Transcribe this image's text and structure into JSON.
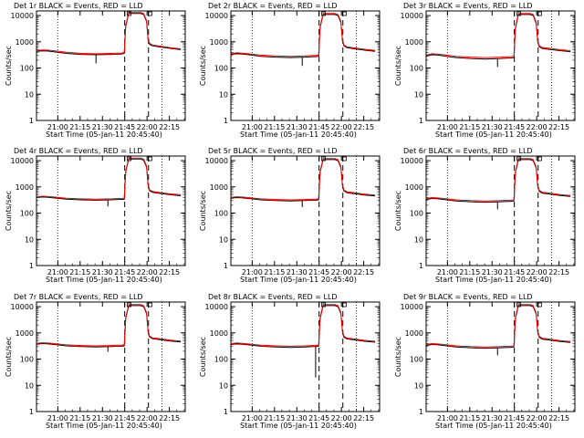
{
  "figure": {
    "ylabel": "Counts/sec",
    "xlabel": "Start Time (05-Jan-11 20:45:40)",
    "x_tick_labels": [
      "21:00",
      "21:15",
      "21:30",
      "21:45",
      "22:00",
      "22:15"
    ],
    "y_tick_labels": [
      "1",
      "10",
      "100",
      "1000",
      "10000"
    ],
    "colors": {
      "events": "#000000",
      "lld": "#ff0000",
      "axes": "#000000",
      "background": "#ffffff"
    }
  },
  "chart_data": [
    {
      "type": "line",
      "title": "Det 1r BLACK = Events, RED = LLD",
      "xlabel": "Start Time (05-Jan-11 20:45:40)",
      "ylabel": "Counts/sec",
      "x_unit": "minutes after 20:45:40",
      "xlim": [
        0,
        100
      ],
      "ylim": [
        1,
        15000
      ],
      "log_y": true,
      "dotted_lines_x": [
        14.3,
        84.3
      ],
      "dashed_lines_x": [
        59.3,
        75.3
      ],
      "x": [
        0,
        4,
        8,
        14,
        20,
        30,
        40,
        50,
        55,
        57,
        59,
        60,
        62,
        65,
        70,
        72,
        74,
        75,
        76,
        78,
        82,
        90,
        97
      ],
      "series": [
        {
          "values": [
            430,
            450,
            440,
            400,
            360,
            330,
            320,
            330,
            340,
            340,
            360,
            4000,
            12000,
            12000,
            12000,
            11000,
            6000,
            1200,
            800,
            700,
            650,
            560,
            500
          ],
          "color": "#000000"
        },
        {
          "values": [
            470,
            490,
            480,
            440,
            400,
            360,
            350,
            360,
            370,
            370,
            390,
            4300,
            13000,
            13000,
            13000,
            12000,
            6500,
            1300,
            880,
            760,
            700,
            600,
            540
          ],
          "color": "#ff0000"
        }
      ],
      "dips": [
        {
          "x": 40,
          "y": 150
        }
      ]
    },
    {
      "type": "line",
      "title": "Det 2r BLACK = Events, RED = LLD",
      "xlabel": "Start Time (05-Jan-11 20:45:40)",
      "ylabel": "Counts/sec",
      "x_unit": "minutes after 20:45:40",
      "xlim": [
        0,
        100
      ],
      "ylim": [
        1,
        15000
      ],
      "log_y": true,
      "dotted_lines_x": [
        14.3,
        84.3
      ],
      "dashed_lines_x": [
        59.3,
        75.3
      ],
      "x": [
        0,
        4,
        8,
        14,
        20,
        30,
        40,
        50,
        55,
        57,
        59,
        60,
        62,
        65,
        70,
        72,
        74,
        75,
        76,
        78,
        82,
        90,
        97
      ],
      "series": [
        {
          "values": [
            330,
            350,
            340,
            310,
            280,
            260,
            250,
            260,
            270,
            270,
            280,
            3500,
            11000,
            11000,
            11000,
            10000,
            5500,
            1100,
            700,
            600,
            550,
            480,
            430
          ],
          "color": "#000000"
        },
        {
          "values": [
            360,
            380,
            370,
            340,
            310,
            290,
            280,
            290,
            300,
            300,
            310,
            3800,
            12000,
            12000,
            12000,
            11000,
            6000,
            1200,
            760,
            650,
            600,
            520,
            470
          ],
          "color": "#ff0000"
        }
      ],
      "dips": [
        {
          "x": 48,
          "y": 120
        }
      ]
    },
    {
      "type": "line",
      "title": "Det 3r BLACK = Events, RED = LLD",
      "xlabel": "Start Time (05-Jan-11 20:45:40)",
      "ylabel": "Counts/sec",
      "x_unit": "minutes after 20:45:40",
      "xlim": [
        0,
        100
      ],
      "ylim": [
        1,
        15000
      ],
      "log_y": true,
      "dotted_lines_x": [
        14.3,
        84.3
      ],
      "dashed_lines_x": [
        59.3,
        75.3
      ],
      "x": [
        0,
        4,
        8,
        14,
        20,
        30,
        40,
        50,
        55,
        57,
        59,
        60,
        62,
        65,
        70,
        72,
        74,
        75,
        76,
        78,
        82,
        90,
        97
      ],
      "series": [
        {
          "values": [
            280,
            320,
            310,
            280,
            250,
            230,
            220,
            230,
            240,
            240,
            250,
            3200,
            11000,
            11000,
            11000,
            10000,
            5000,
            1000,
            650,
            560,
            520,
            460,
            420
          ],
          "color": "#000000"
        },
        {
          "values": [
            310,
            350,
            340,
            310,
            280,
            260,
            250,
            260,
            270,
            270,
            280,
            3500,
            12000,
            12000,
            12000,
            11000,
            5500,
            1100,
            710,
            610,
            570,
            500,
            460
          ],
          "color": "#ff0000"
        }
      ],
      "dips": [
        {
          "x": 48,
          "y": 110
        }
      ]
    },
    {
      "type": "line",
      "title": "Det 4r BLACK = Events, RED = LLD",
      "xlabel": "Start Time (05-Jan-11 20:45:40)",
      "ylabel": "Counts/sec",
      "x_unit": "minutes after 20:45:40",
      "xlim": [
        0,
        100
      ],
      "ylim": [
        1,
        15000
      ],
      "log_y": true,
      "dotted_lines_x": [
        14.3,
        84.3
      ],
      "dashed_lines_x": [
        59.3,
        75.3
      ],
      "x": [
        0,
        4,
        8,
        14,
        20,
        30,
        40,
        50,
        55,
        57,
        59,
        60,
        62,
        65,
        70,
        72,
        74,
        75,
        76,
        78,
        82,
        90,
        97
      ],
      "series": [
        {
          "values": [
            390,
            410,
            400,
            370,
            340,
            320,
            310,
            320,
            330,
            330,
            340,
            3800,
            11500,
            11500,
            11500,
            10500,
            5800,
            1150,
            720,
            620,
            570,
            500,
            460
          ],
          "color": "#000000"
        },
        {
          "values": [
            420,
            440,
            430,
            400,
            370,
            350,
            340,
            350,
            360,
            360,
            370,
            4100,
            12500,
            12500,
            12500,
            11500,
            6300,
            1250,
            780,
            670,
            620,
            540,
            500
          ],
          "color": "#ff0000"
        }
      ],
      "dips": [
        {
          "x": 48,
          "y": 180
        }
      ]
    },
    {
      "type": "line",
      "title": "Det 5r BLACK = Events, RED = LLD",
      "xlabel": "Start Time (05-Jan-11 20:45:40)",
      "ylabel": "Counts/sec",
      "x_unit": "minutes after 20:45:40",
      "xlim": [
        0,
        100
      ],
      "ylim": [
        1,
        15000
      ],
      "log_y": true,
      "dotted_lines_x": [
        14.3,
        84.3
      ],
      "dashed_lines_x": [
        59.3,
        75.3
      ],
      "x": [
        0,
        4,
        8,
        14,
        20,
        30,
        40,
        50,
        55,
        57,
        59,
        60,
        62,
        65,
        70,
        72,
        74,
        75,
        76,
        78,
        82,
        90,
        97
      ],
      "series": [
        {
          "values": [
            370,
            390,
            380,
            350,
            320,
            300,
            290,
            300,
            310,
            310,
            320,
            3600,
            11000,
            11000,
            11000,
            10000,
            5500,
            1100,
            700,
            600,
            560,
            490,
            450
          ],
          "color": "#000000"
        },
        {
          "values": [
            400,
            420,
            410,
            380,
            350,
            330,
            320,
            330,
            340,
            340,
            350,
            3900,
            12000,
            12000,
            12000,
            11000,
            6000,
            1200,
            760,
            650,
            610,
            530,
            490
          ],
          "color": "#ff0000"
        }
      ],
      "dips": [
        {
          "x": 48,
          "y": 170
        }
      ]
    },
    {
      "type": "line",
      "title": "Det 6r BLACK = Events, RED = LLD",
      "xlabel": "Start Time (05-Jan-11 20:45:40)",
      "ylabel": "Counts/sec",
      "x_unit": "minutes after 20:45:40",
      "xlim": [
        0,
        100
      ],
      "ylim": [
        1,
        15000
      ],
      "log_y": true,
      "dotted_lines_x": [
        14.3,
        84.3
      ],
      "dashed_lines_x": [
        59.3,
        75.3
      ],
      "x": [
        0,
        4,
        8,
        14,
        20,
        30,
        40,
        50,
        55,
        57,
        59,
        60,
        62,
        65,
        70,
        72,
        74,
        75,
        76,
        78,
        82,
        90,
        97
      ],
      "series": [
        {
          "values": [
            330,
            360,
            350,
            320,
            290,
            270,
            260,
            270,
            280,
            280,
            290,
            3400,
            11000,
            11000,
            11000,
            10000,
            5200,
            1050,
            680,
            580,
            540,
            470,
            430
          ],
          "color": "#000000"
        },
        {
          "values": [
            360,
            390,
            380,
            350,
            320,
            300,
            290,
            300,
            310,
            310,
            320,
            3700,
            12000,
            12000,
            12000,
            11000,
            5700,
            1150,
            740,
            630,
            590,
            510,
            470
          ],
          "color": "#ff0000"
        }
      ],
      "dips": [
        {
          "x": 48,
          "y": 140
        }
      ]
    },
    {
      "type": "line",
      "title": "Det 7r BLACK = Events, RED = LLD",
      "xlabel": "Start Time (05-Jan-11 20:45:40)",
      "ylabel": "Counts/sec",
      "x_unit": "minutes after 20:45:40",
      "xlim": [
        0,
        100
      ],
      "ylim": [
        1,
        15000
      ],
      "log_y": true,
      "dotted_lines_x": [
        14.3,
        84.3
      ],
      "dashed_lines_x": [
        59.3,
        75.3
      ],
      "x": [
        0,
        4,
        8,
        14,
        20,
        30,
        40,
        50,
        55,
        57,
        59,
        60,
        62,
        65,
        70,
        72,
        74,
        75,
        76,
        78,
        82,
        90,
        97
      ],
      "series": [
        {
          "values": [
            370,
            390,
            380,
            350,
            320,
            300,
            290,
            300,
            310,
            310,
            320,
            3600,
            11000,
            11000,
            11000,
            10000,
            5500,
            1100,
            700,
            600,
            560,
            490,
            450
          ],
          "color": "#000000"
        },
        {
          "values": [
            400,
            420,
            410,
            380,
            350,
            330,
            320,
            330,
            340,
            340,
            350,
            3900,
            12000,
            12000,
            12000,
            11000,
            6000,
            1200,
            760,
            650,
            610,
            530,
            490
          ],
          "color": "#ff0000"
        }
      ],
      "dips": [
        {
          "x": 48,
          "y": 190
        }
      ]
    },
    {
      "type": "line",
      "title": "Det 8r BLACK = Events, RED = LLD",
      "xlabel": "Start Time (05-Jan-11 20:45:40)",
      "ylabel": "Counts/sec",
      "x_unit": "minutes after 20:45:40",
      "xlim": [
        0,
        100
      ],
      "ylim": [
        1,
        15000
      ],
      "log_y": true,
      "dotted_lines_x": [
        14.3,
        84.3
      ],
      "dashed_lines_x": [
        59.3,
        75.3
      ],
      "x": [
        0,
        4,
        8,
        14,
        20,
        30,
        40,
        50,
        55,
        57,
        59,
        60,
        62,
        65,
        70,
        72,
        74,
        75,
        76,
        78,
        82,
        90,
        97
      ],
      "series": [
        {
          "values": [
            360,
            380,
            370,
            340,
            310,
            290,
            280,
            290,
            300,
            300,
            310,
            3500,
            11000,
            11000,
            11000,
            10000,
            5400,
            1080,
            690,
            590,
            550,
            480,
            440
          ],
          "color": "#000000"
        },
        {
          "values": [
            390,
            410,
            400,
            370,
            340,
            320,
            310,
            320,
            330,
            330,
            340,
            3800,
            12000,
            12000,
            12000,
            11000,
            5900,
            1180,
            750,
            640,
            600,
            520,
            480
          ],
          "color": "#ff0000"
        }
      ],
      "dips": [
        {
          "x": 57,
          "y": 20
        }
      ]
    },
    {
      "type": "line",
      "title": "Det 9r BLACK = Events, RED = LLD",
      "xlabel": "Start Time (05-Jan-11 20:45:40)",
      "ylabel": "Counts/sec",
      "x_unit": "minutes after 20:45:40",
      "xlim": [
        0,
        100
      ],
      "ylim": [
        1,
        15000
      ],
      "log_y": true,
      "dotted_lines_x": [
        14.3,
        84.3
      ],
      "dashed_lines_x": [
        59.3,
        75.3
      ],
      "x": [
        0,
        4,
        8,
        14,
        20,
        30,
        40,
        50,
        55,
        57,
        59,
        60,
        62,
        65,
        70,
        72,
        74,
        75,
        76,
        78,
        82,
        90,
        97
      ],
      "series": [
        {
          "values": [
            330,
            360,
            350,
            320,
            290,
            270,
            260,
            270,
            280,
            280,
            290,
            3400,
            11000,
            11000,
            11000,
            10000,
            5200,
            1050,
            680,
            580,
            540,
            470,
            430
          ],
          "color": "#000000"
        },
        {
          "values": [
            360,
            390,
            380,
            350,
            320,
            300,
            290,
            300,
            310,
            310,
            320,
            3700,
            12000,
            12000,
            12000,
            11000,
            5700,
            1150,
            740,
            630,
            590,
            510,
            470
          ],
          "color": "#ff0000"
        }
      ],
      "dips": [
        {
          "x": 48,
          "y": 140
        }
      ]
    }
  ]
}
